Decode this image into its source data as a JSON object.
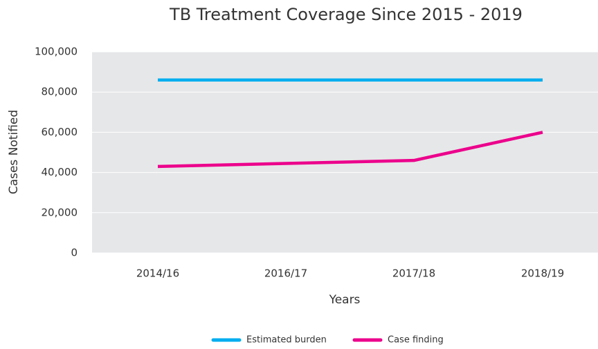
{
  "chart_data": {
    "type": "line",
    "title": "TB Treatment Coverage Since 2015 - 2019",
    "xlabel": "Years",
    "ylabel": "Cases Notified",
    "categories": [
      "2014/16",
      "2016/17",
      "2017/18",
      "2018/19"
    ],
    "series": [
      {
        "name": "Estimated burden",
        "color": "#00aeef",
        "values": [
          86000,
          86000,
          86000,
          86000
        ]
      },
      {
        "name": "Case finding",
        "color": "#ec008c",
        "values": [
          43000,
          44500,
          46000,
          60000
        ]
      }
    ],
    "ylim": [
      0,
      100000
    ],
    "yticks": [
      0,
      {
        "value": 20000,
        "label": "20,000"
      },
      {
        "value": 40000,
        "label": "40,000"
      },
      {
        "value": 60000,
        "label": "60,000"
      },
      {
        "value": 80000,
        "label": "80,000"
      },
      {
        "value": 100000,
        "label": "100,000"
      }
    ],
    "grid": true,
    "legend": "bottom"
  }
}
